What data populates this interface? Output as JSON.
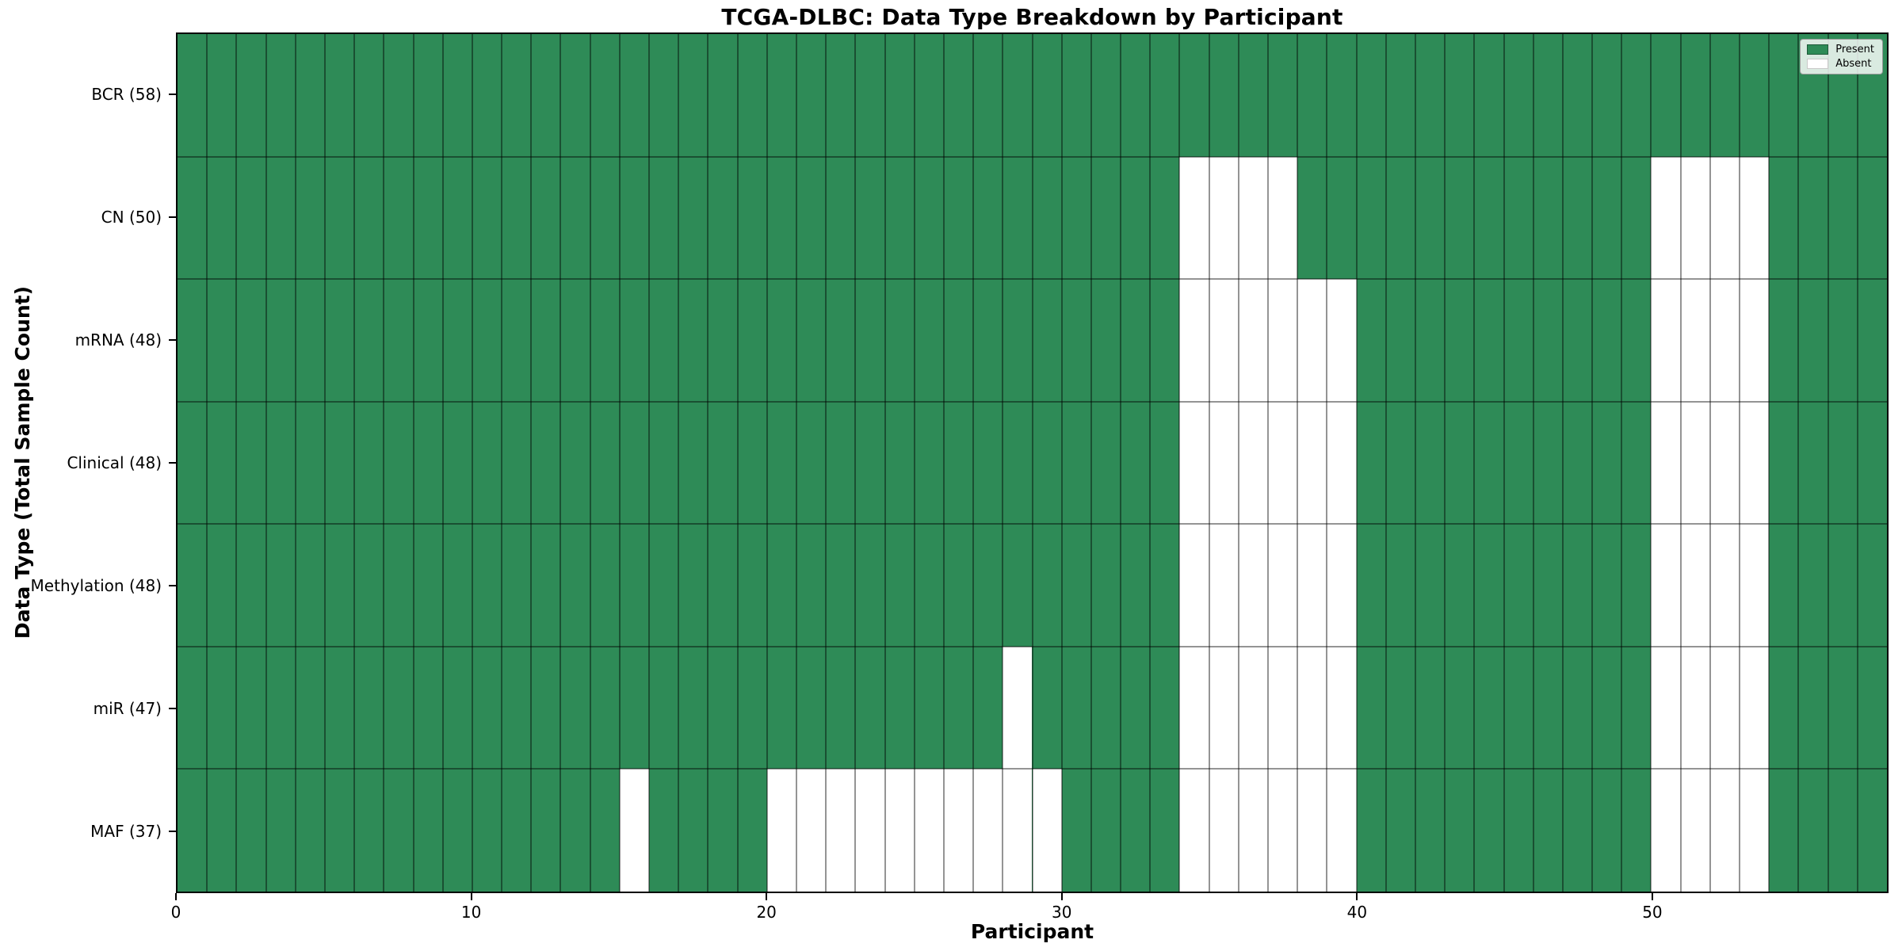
{
  "chart_data": {
    "type": "heatmap",
    "title": "TCGA-DLBC: Data Type Breakdown by Participant",
    "xlabel": "Participant",
    "ylabel": "Data Type (Total Sample Count)",
    "n_participants": 58,
    "x_max": 58,
    "x_ticks": [
      0,
      10,
      20,
      30,
      40,
      50
    ],
    "grid": true,
    "legend_position": "upper right",
    "legend": [
      {
        "label": "Present",
        "color": "#2e8b57"
      },
      {
        "label": "Absent",
        "color": "#ffffff"
      }
    ],
    "colors": {
      "present": "#2e8b57",
      "absent": "#ffffff",
      "grid": "rgba(0,0,0,0.42)",
      "axis_border": "#000000"
    },
    "rows": [
      {
        "label": "BCR (58)",
        "data_type": "BCR",
        "present_count": 58,
        "absent_participants": []
      },
      {
        "label": "CN (50)",
        "data_type": "CN",
        "present_count": 50,
        "absent_participants": [
          34,
          35,
          36,
          37,
          50,
          51,
          52,
          53
        ]
      },
      {
        "label": "mRNA (48)",
        "data_type": "mRNA",
        "present_count": 48,
        "absent_participants": [
          34,
          35,
          36,
          37,
          38,
          39,
          50,
          51,
          52,
          53
        ]
      },
      {
        "label": "Clinical (48)",
        "data_type": "Clinical",
        "present_count": 48,
        "absent_participants": [
          34,
          35,
          36,
          37,
          38,
          39,
          50,
          51,
          52,
          53
        ]
      },
      {
        "label": "Methylation (48)",
        "data_type": "Methylation",
        "present_count": 48,
        "absent_participants": [
          34,
          35,
          36,
          37,
          38,
          39,
          50,
          51,
          52,
          53
        ]
      },
      {
        "label": "miR (47)",
        "data_type": "miR",
        "present_count": 47,
        "absent_participants": [
          28,
          34,
          35,
          36,
          37,
          38,
          39,
          50,
          51,
          52,
          53
        ]
      },
      {
        "label": "MAF (37)",
        "data_type": "MAF",
        "present_count": 37,
        "absent_participants": [
          15,
          20,
          21,
          22,
          23,
          24,
          25,
          26,
          27,
          28,
          29,
          34,
          35,
          36,
          37,
          38,
          39,
          50,
          51,
          52,
          53
        ]
      }
    ]
  }
}
